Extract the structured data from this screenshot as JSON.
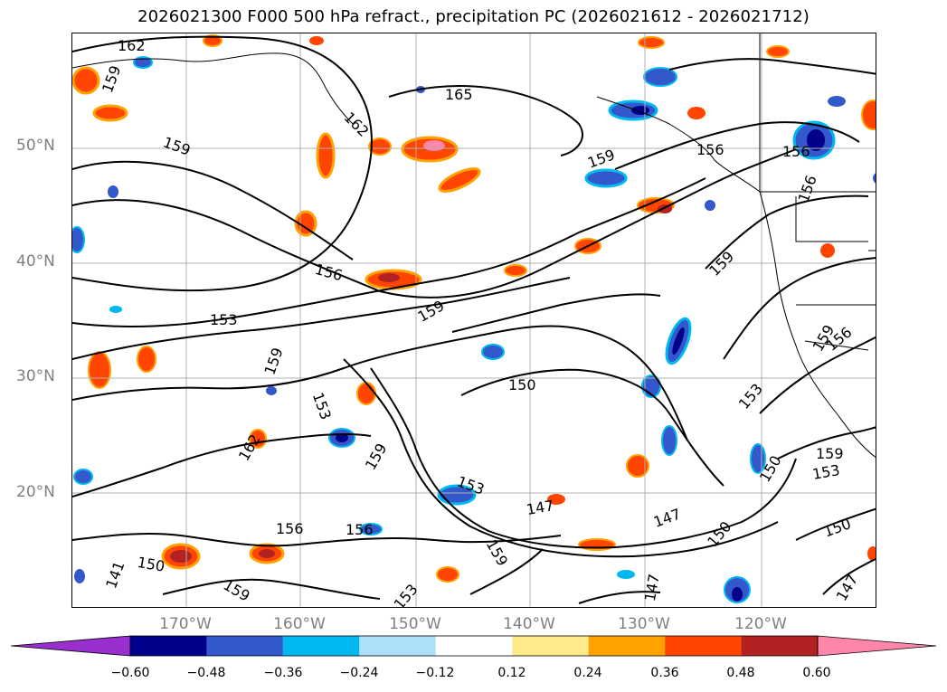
{
  "title": "2026021300 F000 500 hPa refract., precipitation PC (2026021612 - 2026021712)",
  "map": {
    "lat_labels": [
      "50°N",
      "40°N",
      "30°N",
      "20°N"
    ],
    "lon_labels": [
      "170°W",
      "160°W",
      "150°W",
      "140°W",
      "130°W",
      "120°W"
    ],
    "contour_labels": [
      "162",
      "159",
      "165",
      "162",
      "159",
      "159",
      "156",
      "156",
      "156",
      "153",
      "159",
      "159",
      "153",
      "150",
      "159",
      "159",
      "162",
      "153",
      "150",
      "153",
      "147",
      "147",
      "150",
      "156",
      "159",
      "153",
      "156",
      "159",
      "150",
      "147",
      "141",
      "150",
      "159",
      "153",
      "156",
      "156",
      "159",
      "147"
    ]
  },
  "colorbar": {
    "ticks": [
      "−0.60",
      "−0.48",
      "−0.36",
      "−0.24",
      "−0.12",
      "0.12",
      "0.24",
      "0.36",
      "0.48",
      "0.60"
    ],
    "colors": [
      "#9a2fd0",
      "#00008b",
      "#3358cc",
      "#00b8f0",
      "#ade0f8",
      "#ffffff",
      "#ffe98a",
      "#ffa200",
      "#ff4500",
      "#b22222",
      "#ff85ab"
    ]
  }
}
